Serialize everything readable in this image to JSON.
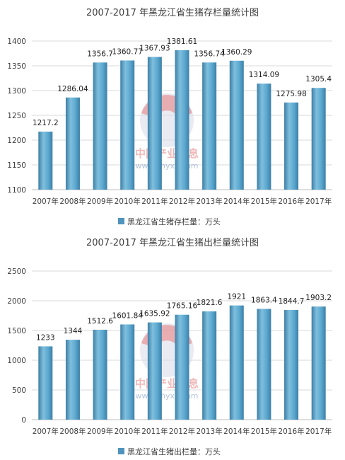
{
  "watermark": {
    "name": "中国产业信息",
    "url": "www.chyxx.com"
  },
  "colors": {
    "bar_light": "#7fbfdd",
    "bar_mid": "#5aa7cf",
    "bar_dark": "#3d7fa6",
    "legend": "#4f94bd"
  },
  "chart_data": [
    {
      "type": "bar",
      "title": "2007-2017 年黑龙江省生猪存栏量统计图",
      "categories": [
        "2007年",
        "2008年",
        "2009年",
        "2010年",
        "2011年",
        "2012年",
        "2013年",
        "2014年",
        "2015年",
        "2016年",
        "2017年"
      ],
      "series": [
        {
          "name": "黑龙江省生猪存栏量：万头",
          "values": [
            1217.2,
            1286.04,
            1356.7,
            1360.77,
            1367.93,
            1381.61,
            1356.74,
            1360.29,
            1314.09,
            1275.98,
            1305.4
          ]
        }
      ],
      "data_labels": [
        "1217.2",
        "1286.04",
        "1356.7",
        "1360.77",
        "1367.93",
        "1381.61",
        "1356.74",
        "1360.29",
        "1314.09",
        "1275.98",
        "1305.4"
      ],
      "ylim": [
        1100,
        1400
      ],
      "yticks": [
        1100,
        1150,
        1200,
        1250,
        1300,
        1350,
        1400
      ],
      "grid": true,
      "legend": "bottom"
    },
    {
      "type": "bar",
      "title": "2007-2017 年黑龙江省生猪出栏量统计图",
      "categories": [
        "2007年",
        "2008年",
        "2009年",
        "2010年",
        "2011年",
        "2012年",
        "2013年",
        "2014年",
        "2015年",
        "2016年",
        "2017年"
      ],
      "series": [
        {
          "name": "黑龙江省生猪出栏量：万头",
          "values": [
            1233,
            1344,
            1512.6,
            1601.84,
            1635.92,
            1765.16,
            1821.6,
            1921,
            1863.4,
            1844.7,
            1903.2
          ]
        }
      ],
      "data_labels": [
        "1233",
        "1344",
        "1512.6",
        "1601.84",
        "1635.92",
        "1765.16",
        "1821.6",
        "1921",
        "1863.4",
        "1844.7",
        "1903.2"
      ],
      "ylim": [
        0,
        2500
      ],
      "yticks": [
        0,
        500,
        1000,
        1500,
        2000,
        2500
      ],
      "grid": true,
      "legend": "bottom"
    }
  ]
}
